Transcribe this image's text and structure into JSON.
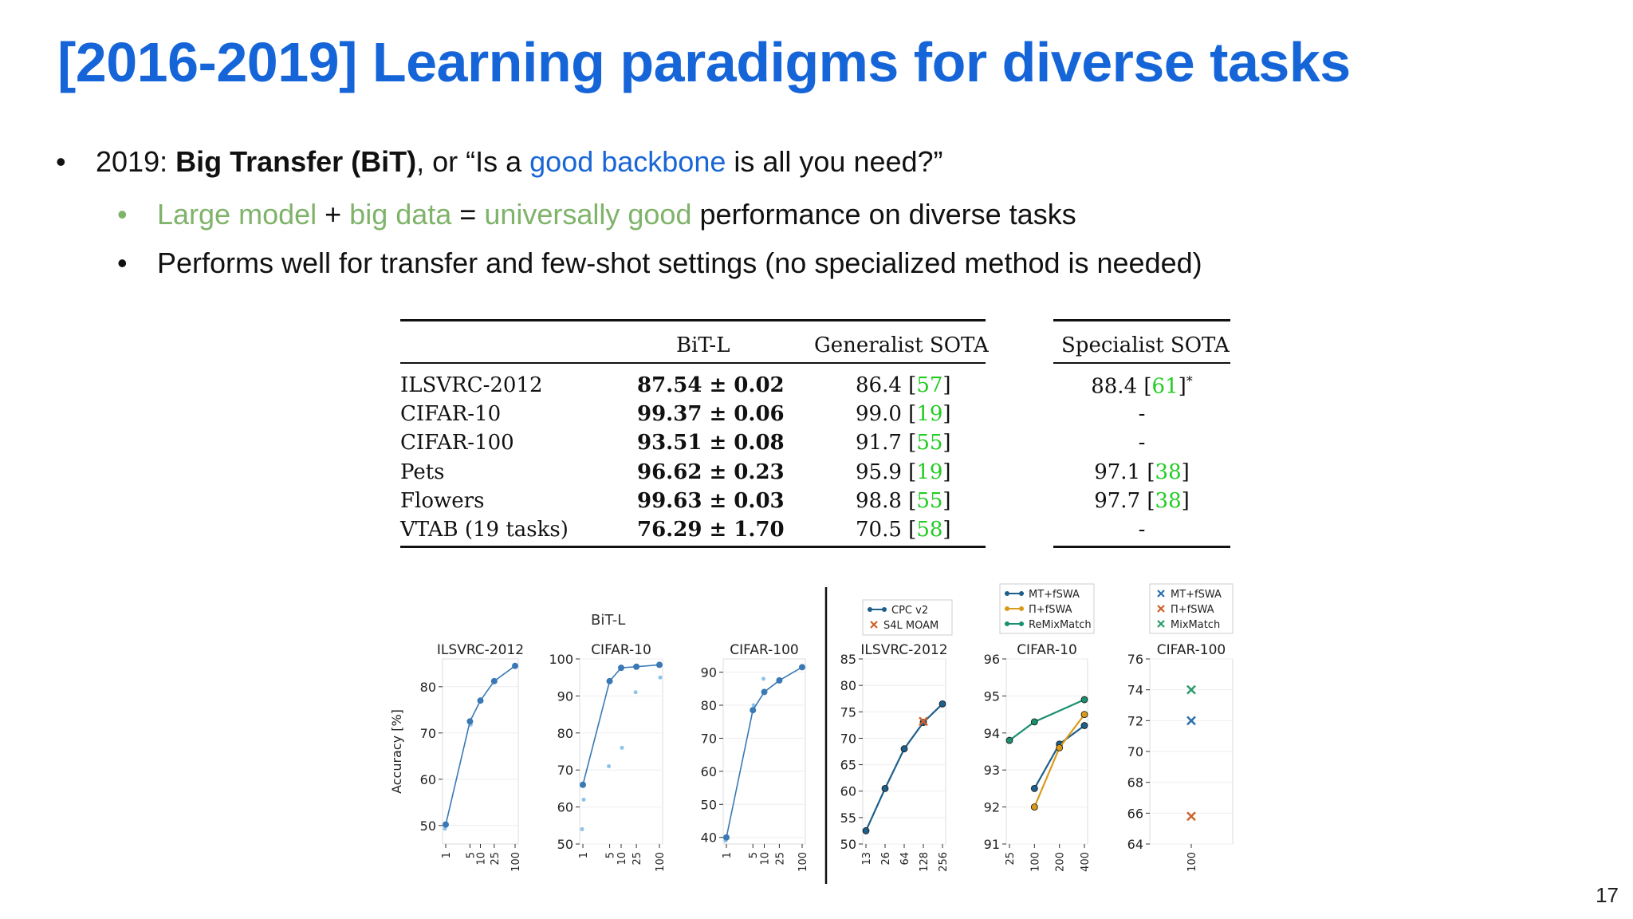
{
  "title": "[2016-2019] Learning paradigms for diverse tasks",
  "bullets": {
    "main": {
      "prefix": "2019: ",
      "bold": "Big Transfer (BiT)",
      "mid": ", or “Is a ",
      "blue": "good backbone",
      "suffix": " is all you need?”"
    },
    "sub1": {
      "g1": "Large model",
      "plus": " + ",
      "g2": "big data",
      "eq": " = ",
      "g3": "universally good",
      "rest": " performance on diverse tasks"
    },
    "sub2": "Performs well for transfer and few-shot settings (no specialized method is needed)"
  },
  "table": {
    "headers": [
      "BiT-L",
      "Generalist SOTA",
      "Specialist SOTA"
    ],
    "rows": [
      {
        "name": "ILSVRC-2012",
        "bit": "87.54 ± 0.02",
        "gen": "86.4",
        "gen_ref": "57",
        "spec": "88.4",
        "spec_ref": "61",
        "spec_mark": "*"
      },
      {
        "name": "CIFAR-10",
        "bit": "99.37 ± 0.06",
        "gen": "99.0",
        "gen_ref": "19",
        "spec": "-",
        "spec_ref": "",
        "spec_mark": ""
      },
      {
        "name": "CIFAR-100",
        "bit": "93.51 ± 0.08",
        "gen": "91.7",
        "gen_ref": "55",
        "spec": "-",
        "spec_ref": "",
        "spec_mark": ""
      },
      {
        "name": "Pets",
        "bit": "96.62 ± 0.23",
        "gen": "95.9",
        "gen_ref": "19",
        "spec": "97.1",
        "spec_ref": "38",
        "spec_mark": ""
      },
      {
        "name": "Flowers",
        "bit": "99.63 ± 0.03",
        "gen": "98.8",
        "gen_ref": "55",
        "spec": "97.7",
        "spec_ref": "38",
        "spec_mark": ""
      },
      {
        "name": "VTAB (19 tasks)",
        "bit": "76.29 ± 1.70",
        "gen": "70.5",
        "gen_ref": "58",
        "spec": "-",
        "spec_ref": "",
        "spec_mark": ""
      }
    ]
  },
  "chart_data": [
    {
      "type": "line",
      "group_label": "BiT-L",
      "title": "ILSVRC-2012",
      "ylabel": "Accuracy [%]",
      "x": [
        1,
        5,
        10,
        25,
        100
      ],
      "xticks": [
        "1",
        "5",
        "10",
        "25",
        "100"
      ],
      "ylim": [
        46,
        86
      ],
      "yticks": [
        50,
        60,
        70,
        80
      ],
      "series": [
        {
          "values": [
            50.2,
            72.5,
            77.0,
            81.2,
            84.5
          ]
        }
      ],
      "scatter_light": [
        49.3,
        71.8
      ]
    },
    {
      "type": "line",
      "title": "CIFAR-10",
      "x": [
        1,
        5,
        10,
        25,
        100
      ],
      "xticks": [
        "1",
        "5",
        "10",
        "25",
        "100"
      ],
      "ylim": [
        50,
        100
      ],
      "yticks": [
        50,
        60,
        70,
        80,
        90,
        100
      ],
      "series": [
        {
          "values": [
            66,
            94,
            97.6,
            97.9,
            98.4
          ]
        }
      ],
      "scatter_light": [
        54,
        62,
        71,
        76,
        91,
        95
      ]
    },
    {
      "type": "line",
      "title": "CIFAR-100",
      "x": [
        1,
        5,
        10,
        25,
        100
      ],
      "xticks": [
        "1",
        "5",
        "10",
        "25",
        "100"
      ],
      "ylim": [
        38,
        94
      ],
      "yticks": [
        40,
        50,
        60,
        70,
        80,
        90
      ],
      "series": [
        {
          "values": [
            40,
            78.5,
            84,
            87.5,
            91.5
          ]
        }
      ],
      "scatter_light": [
        39,
        80,
        88
      ]
    },
    {
      "type": "line",
      "title": "ILSVRC-2012",
      "x": [
        13,
        26,
        64,
        128,
        256
      ],
      "xticks": [
        "13",
        "26",
        "64",
        "128",
        "256"
      ],
      "ylim": [
        50,
        85
      ],
      "yticks": [
        50,
        55,
        60,
        65,
        70,
        75,
        80,
        85
      ],
      "series": [
        {
          "name": "CPC v2",
          "color": "#1f5f8b",
          "values": [
            52.5,
            60.5,
            68,
            73,
            76.5
          ]
        },
        {
          "name": "S4L MOAM",
          "color": "#d0602a",
          "marker": "x",
          "points": [
            [
              128,
              73.2
            ]
          ]
        }
      ]
    },
    {
      "type": "line",
      "title": "CIFAR-10",
      "x": [
        25,
        100,
        200,
        400
      ],
      "xticks": [
        "25",
        "100",
        "200",
        "400"
      ],
      "ylim": [
        91,
        96
      ],
      "yticks": [
        91,
        92,
        93,
        94,
        95,
        96
      ],
      "series": [
        {
          "name": "MT+fSWA",
          "color": "#1f5f8b",
          "values": [
            null,
            92.5,
            93.7,
            94.2
          ]
        },
        {
          "name": "Π+fSWA",
          "color": "#d99a1a",
          "values": [
            null,
            92,
            93.6,
            94.5
          ]
        },
        {
          "name": "ReMixMatch",
          "color": "#1a9070",
          "values": [
            93.8,
            94.3,
            null,
            94.9
          ]
        }
      ]
    },
    {
      "type": "scatter",
      "title": "CIFAR-100",
      "x": [
        100
      ],
      "xticks": [
        "100"
      ],
      "ylim": [
        64,
        76
      ],
      "yticks": [
        64,
        66,
        68,
        70,
        72,
        74,
        76
      ],
      "series": [
        {
          "name": "MT+fSWA",
          "color": "#2a6fae",
          "marker": "x",
          "values": [
            72
          ]
        },
        {
          "name": "Π+fSWA",
          "color": "#d0602a",
          "marker": "x",
          "values": [
            65.8
          ]
        },
        {
          "name": "MixMatch",
          "color": "#2a9a6a",
          "marker": "x",
          "values": [
            74
          ]
        }
      ]
    }
  ],
  "page_number": "17"
}
